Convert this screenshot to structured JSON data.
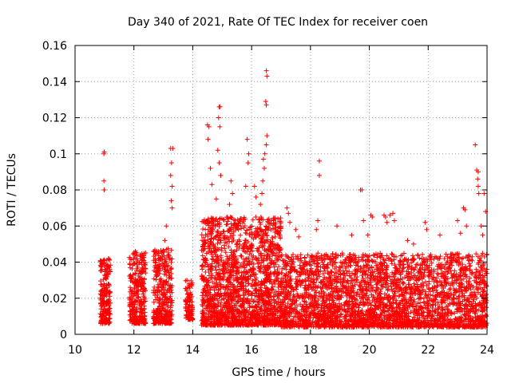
{
  "chart_data": {
    "type": "scatter",
    "title": "Day 340 of 2021, Rate Of TEC Index for receiver coen",
    "xlabel": "GPS time / hours",
    "ylabel": "ROTI / TECUs",
    "xlim": [
      10,
      24
    ],
    "ylim": [
      0,
      0.16
    ],
    "xticks": [
      10,
      12,
      14,
      16,
      18,
      20,
      22,
      24
    ],
    "xtick_labels": [
      "10",
      "12",
      "14",
      "16",
      "18",
      "20",
      "22",
      "24"
    ],
    "yticks": [
      0,
      0.02,
      0.04,
      0.06,
      0.08,
      0.1,
      0.12,
      0.14,
      0.16
    ],
    "ytick_labels": [
      "0",
      "0.02",
      "0.04",
      "0.06",
      "0.08",
      "0.1",
      "0.12",
      "0.14",
      "0.16"
    ],
    "grid": true,
    "marker": "+",
    "color": "#ff0000",
    "series": [
      {
        "name": "ROTI",
        "clusters": [
          {
            "x_start": 10.85,
            "x_end": 11.2,
            "y_min": 0.006,
            "y_max": 0.042,
            "count": 220
          },
          {
            "x_start": 11.85,
            "x_end": 12.4,
            "y_min": 0.006,
            "y_max": 0.046,
            "count": 320
          },
          {
            "x_start": 12.65,
            "x_end": 13.3,
            "y_min": 0.006,
            "y_max": 0.048,
            "count": 360
          },
          {
            "x_start": 13.75,
            "x_end": 14.0,
            "y_min": 0.008,
            "y_max": 0.03,
            "count": 100
          },
          {
            "x_start": 14.3,
            "x_end": 17.0,
            "y_min": 0.005,
            "y_max": 0.065,
            "count": 1800
          },
          {
            "x_start": 17.0,
            "x_end": 24.0,
            "y_min": 0.004,
            "y_max": 0.045,
            "count": 3200
          }
        ],
        "outliers": [
          {
            "x": 10.98,
            "y": 0.1
          },
          {
            "x": 10.99,
            "y": 0.101
          },
          {
            "x": 10.98,
            "y": 0.085
          },
          {
            "x": 10.99,
            "y": 0.08
          },
          {
            "x": 13.25,
            "y": 0.103
          },
          {
            "x": 13.32,
            "y": 0.103
          },
          {
            "x": 13.28,
            "y": 0.095
          },
          {
            "x": 13.25,
            "y": 0.088
          },
          {
            "x": 13.3,
            "y": 0.082
          },
          {
            "x": 13.27,
            "y": 0.074
          },
          {
            "x": 13.3,
            "y": 0.07
          },
          {
            "x": 13.1,
            "y": 0.06
          },
          {
            "x": 13.05,
            "y": 0.052
          },
          {
            "x": 12.05,
            "y": 0.046
          },
          {
            "x": 14.5,
            "y": 0.116
          },
          {
            "x": 14.55,
            "y": 0.115
          },
          {
            "x": 14.52,
            "y": 0.108
          },
          {
            "x": 14.6,
            "y": 0.092
          },
          {
            "x": 14.65,
            "y": 0.083
          },
          {
            "x": 14.9,
            "y": 0.126
          },
          {
            "x": 14.93,
            "y": 0.126
          },
          {
            "x": 14.88,
            "y": 0.12
          },
          {
            "x": 14.92,
            "y": 0.115
          },
          {
            "x": 14.85,
            "y": 0.102
          },
          {
            "x": 14.9,
            "y": 0.095
          },
          {
            "x": 14.95,
            "y": 0.088
          },
          {
            "x": 14.8,
            "y": 0.075
          },
          {
            "x": 15.3,
            "y": 0.085
          },
          {
            "x": 15.35,
            "y": 0.078
          },
          {
            "x": 15.25,
            "y": 0.072
          },
          {
            "x": 15.85,
            "y": 0.108
          },
          {
            "x": 15.9,
            "y": 0.1
          },
          {
            "x": 15.88,
            "y": 0.095
          },
          {
            "x": 15.8,
            "y": 0.082
          },
          {
            "x": 16.1,
            "y": 0.082
          },
          {
            "x": 16.15,
            "y": 0.076
          },
          {
            "x": 16.5,
            "y": 0.146
          },
          {
            "x": 16.52,
            "y": 0.143
          },
          {
            "x": 16.48,
            "y": 0.129
          },
          {
            "x": 16.5,
            "y": 0.127
          },
          {
            "x": 16.52,
            "y": 0.11
          },
          {
            "x": 16.5,
            "y": 0.105
          },
          {
            "x": 16.45,
            "y": 0.1
          },
          {
            "x": 16.4,
            "y": 0.097
          },
          {
            "x": 16.43,
            "y": 0.092
          },
          {
            "x": 16.38,
            "y": 0.085
          },
          {
            "x": 16.35,
            "y": 0.078
          },
          {
            "x": 16.3,
            "y": 0.072
          },
          {
            "x": 17.2,
            "y": 0.07
          },
          {
            "x": 17.25,
            "y": 0.067
          },
          {
            "x": 17.3,
            "y": 0.062
          },
          {
            "x": 17.5,
            "y": 0.058
          },
          {
            "x": 17.6,
            "y": 0.054
          },
          {
            "x": 18.3,
            "y": 0.096
          },
          {
            "x": 18.3,
            "y": 0.088
          },
          {
            "x": 18.25,
            "y": 0.063
          },
          {
            "x": 18.2,
            "y": 0.058
          },
          {
            "x": 18.9,
            "y": 0.06
          },
          {
            "x": 19.4,
            "y": 0.055
          },
          {
            "x": 19.7,
            "y": 0.08
          },
          {
            "x": 19.75,
            "y": 0.08
          },
          {
            "x": 19.8,
            "y": 0.063
          },
          {
            "x": 20.05,
            "y": 0.066
          },
          {
            "x": 20.1,
            "y": 0.065
          },
          {
            "x": 19.95,
            "y": 0.055
          },
          {
            "x": 20.5,
            "y": 0.066
          },
          {
            "x": 20.55,
            "y": 0.065
          },
          {
            "x": 20.6,
            "y": 0.062
          },
          {
            "x": 20.7,
            "y": 0.066
          },
          {
            "x": 20.8,
            "y": 0.067
          },
          {
            "x": 20.85,
            "y": 0.063
          },
          {
            "x": 21.3,
            "y": 0.052
          },
          {
            "x": 21.5,
            "y": 0.05
          },
          {
            "x": 21.9,
            "y": 0.062
          },
          {
            "x": 21.95,
            "y": 0.058
          },
          {
            "x": 22.4,
            "y": 0.055
          },
          {
            "x": 23.0,
            "y": 0.063
          },
          {
            "x": 23.2,
            "y": 0.07
          },
          {
            "x": 23.25,
            "y": 0.069
          },
          {
            "x": 23.3,
            "y": 0.06
          },
          {
            "x": 23.1,
            "y": 0.056
          },
          {
            "x": 23.6,
            "y": 0.105
          },
          {
            "x": 23.65,
            "y": 0.091
          },
          {
            "x": 23.7,
            "y": 0.09
          },
          {
            "x": 23.68,
            "y": 0.086
          },
          {
            "x": 23.7,
            "y": 0.082
          },
          {
            "x": 23.72,
            "y": 0.078
          },
          {
            "x": 23.9,
            "y": 0.078
          },
          {
            "x": 23.95,
            "y": 0.068
          },
          {
            "x": 23.8,
            "y": 0.06
          },
          {
            "x": 23.85,
            "y": 0.055
          }
        ]
      }
    ]
  }
}
